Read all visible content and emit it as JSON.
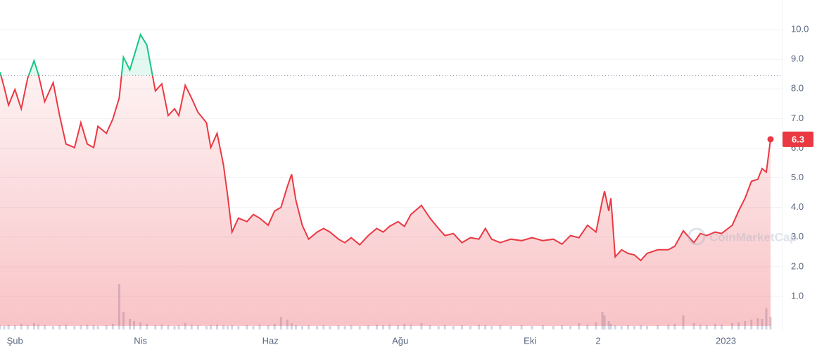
{
  "chart_data": {
    "type": "line",
    "series": [
      {
        "color_up": "#16c784",
        "color_down": "#ea3943",
        "x": [
          0,
          2,
          4,
          7,
          10,
          13,
          16,
          18,
          21,
          25,
          28,
          31,
          35,
          38,
          41,
          44,
          46,
          50,
          53,
          56,
          58,
          61,
          63,
          66,
          69,
          73,
          76,
          79,
          82,
          84,
          87,
          90,
          93,
          97,
          99,
          102,
          105,
          107,
          109,
          112,
          116,
          119,
          122,
          126,
          129,
          132,
          135,
          137,
          139,
          142,
          145,
          149,
          152,
          155,
          159,
          162,
          165,
          169,
          173,
          177,
          180,
          183,
          187,
          190,
          193,
          198,
          202,
          206,
          209,
          213,
          217,
          221,
          225,
          228,
          231,
          235,
          240,
          245,
          250,
          255,
          260,
          264,
          268,
          272,
          276,
          280,
          283,
          284,
          286,
          287,
          289,
          292,
          295,
          298,
          301,
          304,
          309,
          314,
          317,
          321,
          326,
          329,
          332,
          336,
          339,
          344,
          347,
          350,
          353,
          356,
          358,
          360,
          362
        ],
        "values": [
          8.57,
          8.05,
          7.45,
          7.98,
          7.33,
          8.36,
          8.95,
          8.5,
          7.57,
          8.21,
          7.1,
          6.14,
          6.02,
          6.86,
          6.14,
          6.02,
          6.74,
          6.5,
          6.98,
          7.69,
          9.07,
          8.64,
          9.12,
          9.83,
          9.48,
          7.93,
          8.17,
          7.1,
          7.33,
          7.1,
          8.12,
          7.69,
          7.21,
          6.86,
          6.02,
          6.5,
          5.43,
          4.36,
          3.17,
          3.64,
          3.52,
          3.76,
          3.64,
          3.4,
          3.88,
          4.0,
          4.71,
          5.12,
          4.24,
          3.4,
          2.93,
          3.17,
          3.29,
          3.17,
          2.93,
          2.81,
          2.98,
          2.74,
          3.05,
          3.29,
          3.17,
          3.36,
          3.52,
          3.36,
          3.76,
          4.07,
          3.64,
          3.29,
          3.05,
          3.12,
          2.81,
          2.98,
          2.93,
          3.29,
          2.93,
          2.81,
          2.93,
          2.88,
          2.98,
          2.88,
          2.93,
          2.76,
          3.05,
          2.98,
          3.4,
          3.17,
          4.24,
          4.55,
          3.88,
          4.31,
          2.33,
          2.57,
          2.45,
          2.4,
          2.21,
          2.45,
          2.57,
          2.57,
          2.69,
          3.21,
          2.81,
          3.12,
          3.05,
          3.17,
          3.12,
          3.4,
          3.88,
          4.31,
          4.88,
          4.95,
          5.31,
          5.19,
          6.3
        ],
        "volume": [
          6,
          5,
          7,
          6,
          8,
          6,
          9,
          7,
          6,
          5,
          6,
          7,
          5,
          6,
          7,
          6,
          5,
          6,
          8,
          65,
          25,
          15,
          12,
          10,
          8,
          6,
          7,
          6,
          5,
          6,
          9,
          7,
          6,
          5,
          6,
          7,
          6,
          5,
          6,
          5,
          6,
          5,
          7,
          6,
          8,
          18,
          14,
          9,
          6,
          5,
          6,
          5,
          6,
          5,
          6,
          5,
          6,
          5,
          6,
          7,
          6,
          7,
          6,
          8,
          7,
          9,
          6,
          5,
          6,
          5,
          6,
          5,
          7,
          6,
          5,
          6,
          5,
          6,
          5,
          6,
          5,
          6,
          5,
          9,
          7,
          10,
          25,
          20,
          12,
          8,
          6,
          5,
          6,
          5,
          6,
          5,
          6,
          7,
          8,
          20,
          9,
          7,
          6,
          8,
          7,
          9,
          10,
          12,
          14,
          16,
          15,
          30,
          18
        ]
      }
    ],
    "baseline": 8.45,
    "xlim": [
      0,
      362
    ],
    "xticks": [
      {
        "value": 7,
        "label": "Şub"
      },
      {
        "value": 66,
        "label": "Nis"
      },
      {
        "value": 127,
        "label": "Haz"
      },
      {
        "value": 188,
        "label": "Ağu"
      },
      {
        "value": 249,
        "label": "Eki"
      },
      {
        "value": 281,
        "label": "2"
      },
      {
        "value": 341,
        "label": "2023"
      }
    ],
    "ylim": [
      0,
      11
    ],
    "yticks": [
      {
        "value": 1,
        "label": "1.0"
      },
      {
        "value": 2,
        "label": "2.0"
      },
      {
        "value": 3,
        "label": "3.0"
      },
      {
        "value": 4,
        "label": "4.0"
      },
      {
        "value": 5,
        "label": "5.0"
      },
      {
        "value": 6,
        "label": "6.0"
      },
      {
        "value": 7,
        "label": "7.0"
      },
      {
        "value": 8,
        "label": "8.0"
      },
      {
        "value": 9,
        "label": "9.0"
      },
      {
        "value": 10,
        "label": "10.0"
      }
    ],
    "grid": true,
    "watermark": "CoinMarketCap"
  }
}
